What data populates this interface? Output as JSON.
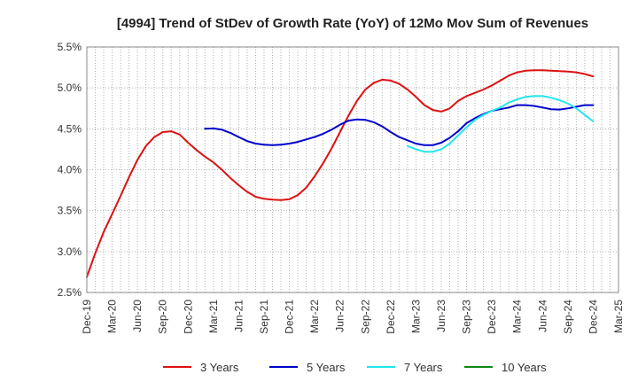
{
  "chart_data": {
    "type": "line",
    "title": "[4994]  Trend of StDev of Growth Rate (YoY) of 12Mo Mov Sum of Revenues",
    "xlabel": "",
    "ylabel": "",
    "ylim": [
      2.5,
      5.5
    ],
    "y_ticks": [
      "2.5%",
      "3.0%",
      "3.5%",
      "4.0%",
      "4.5%",
      "5.0%",
      "5.5%"
    ],
    "y_tick_values": [
      2.5,
      3.0,
      3.5,
      4.0,
      4.5,
      5.0,
      5.5
    ],
    "x_ticks": [
      "Dec-19",
      "Mar-20",
      "Jun-20",
      "Sep-20",
      "Dec-20",
      "Mar-21",
      "Jun-21",
      "Sep-21",
      "Dec-21",
      "Mar-22",
      "Jun-22",
      "Sep-22",
      "Dec-22",
      "Mar-23",
      "Jun-23",
      "Sep-23",
      "Dec-23",
      "Mar-24",
      "Jun-24",
      "Sep-24",
      "Dec-24",
      "Mar-25"
    ],
    "x_range_months": [
      0,
      63
    ],
    "grid": true,
    "legend_position": "bottom",
    "series": [
      {
        "name": "3 Years",
        "color": "#dd1111",
        "x": [
          0,
          1,
          2,
          3,
          4,
          5,
          6,
          7,
          8,
          9,
          10,
          11,
          12,
          13,
          14,
          15,
          16,
          17,
          18,
          19,
          20,
          21,
          22,
          23,
          24,
          25,
          26,
          27,
          28,
          29,
          30,
          31,
          32,
          33,
          34,
          35,
          36,
          37,
          38,
          39,
          40,
          41,
          42,
          43,
          44,
          45,
          46,
          47,
          48,
          49,
          50,
          51,
          52,
          53,
          54,
          55,
          56,
          57,
          58,
          59,
          60
        ],
        "values": [
          2.69,
          2.98,
          3.24,
          3.46,
          3.68,
          3.91,
          4.12,
          4.29,
          4.4,
          4.46,
          4.47,
          4.43,
          4.33,
          4.24,
          4.16,
          4.09,
          4.0,
          3.9,
          3.81,
          3.73,
          3.67,
          3.645,
          3.635,
          3.63,
          3.64,
          3.69,
          3.78,
          3.92,
          4.08,
          4.26,
          4.46,
          4.66,
          4.84,
          4.98,
          5.06,
          5.1,
          5.09,
          5.05,
          4.98,
          4.89,
          4.79,
          4.73,
          4.71,
          4.75,
          4.84,
          4.9,
          4.94,
          4.98,
          5.03,
          5.09,
          5.15,
          5.19,
          5.21,
          5.215,
          5.215,
          5.21,
          5.205,
          5.2,
          5.19,
          5.17,
          5.14
        ]
      },
      {
        "name": "5 Years",
        "color": "#0000cc",
        "x": [
          14,
          15,
          16,
          17,
          18,
          19,
          20,
          21,
          22,
          23,
          24,
          25,
          26,
          27,
          28,
          29,
          30,
          31,
          32,
          33,
          34,
          35,
          36,
          37,
          38,
          39,
          40,
          41,
          42,
          43,
          44,
          45,
          46,
          47,
          48,
          49,
          50,
          51,
          52,
          53,
          54,
          55,
          56,
          57,
          58,
          59,
          60
        ],
        "values": [
          4.5,
          4.505,
          4.49,
          4.45,
          4.4,
          4.35,
          4.32,
          4.305,
          4.3,
          4.305,
          4.32,
          4.34,
          4.37,
          4.4,
          4.44,
          4.49,
          4.55,
          4.6,
          4.615,
          4.61,
          4.58,
          4.53,
          4.46,
          4.4,
          4.36,
          4.32,
          4.3,
          4.3,
          4.33,
          4.39,
          4.47,
          4.57,
          4.63,
          4.68,
          4.72,
          4.74,
          4.76,
          4.79,
          4.79,
          4.78,
          4.76,
          4.74,
          4.735,
          4.75,
          4.77,
          4.79,
          4.79
        ]
      },
      {
        "name": "7 Years",
        "color": "#22e5ee",
        "x": [
          38,
          39,
          40,
          41,
          42,
          43,
          44,
          45,
          46,
          47,
          48,
          49,
          50,
          51,
          52,
          53,
          54,
          55,
          56,
          57,
          58,
          59,
          60
        ],
        "values": [
          4.29,
          4.25,
          4.22,
          4.22,
          4.25,
          4.32,
          4.42,
          4.52,
          4.61,
          4.67,
          4.72,
          4.76,
          4.82,
          4.86,
          4.89,
          4.9,
          4.9,
          4.88,
          4.85,
          4.81,
          4.75,
          4.67,
          4.59
        ]
      },
      {
        "name": "10 Years",
        "color": "#118811",
        "x": [],
        "values": []
      }
    ]
  }
}
